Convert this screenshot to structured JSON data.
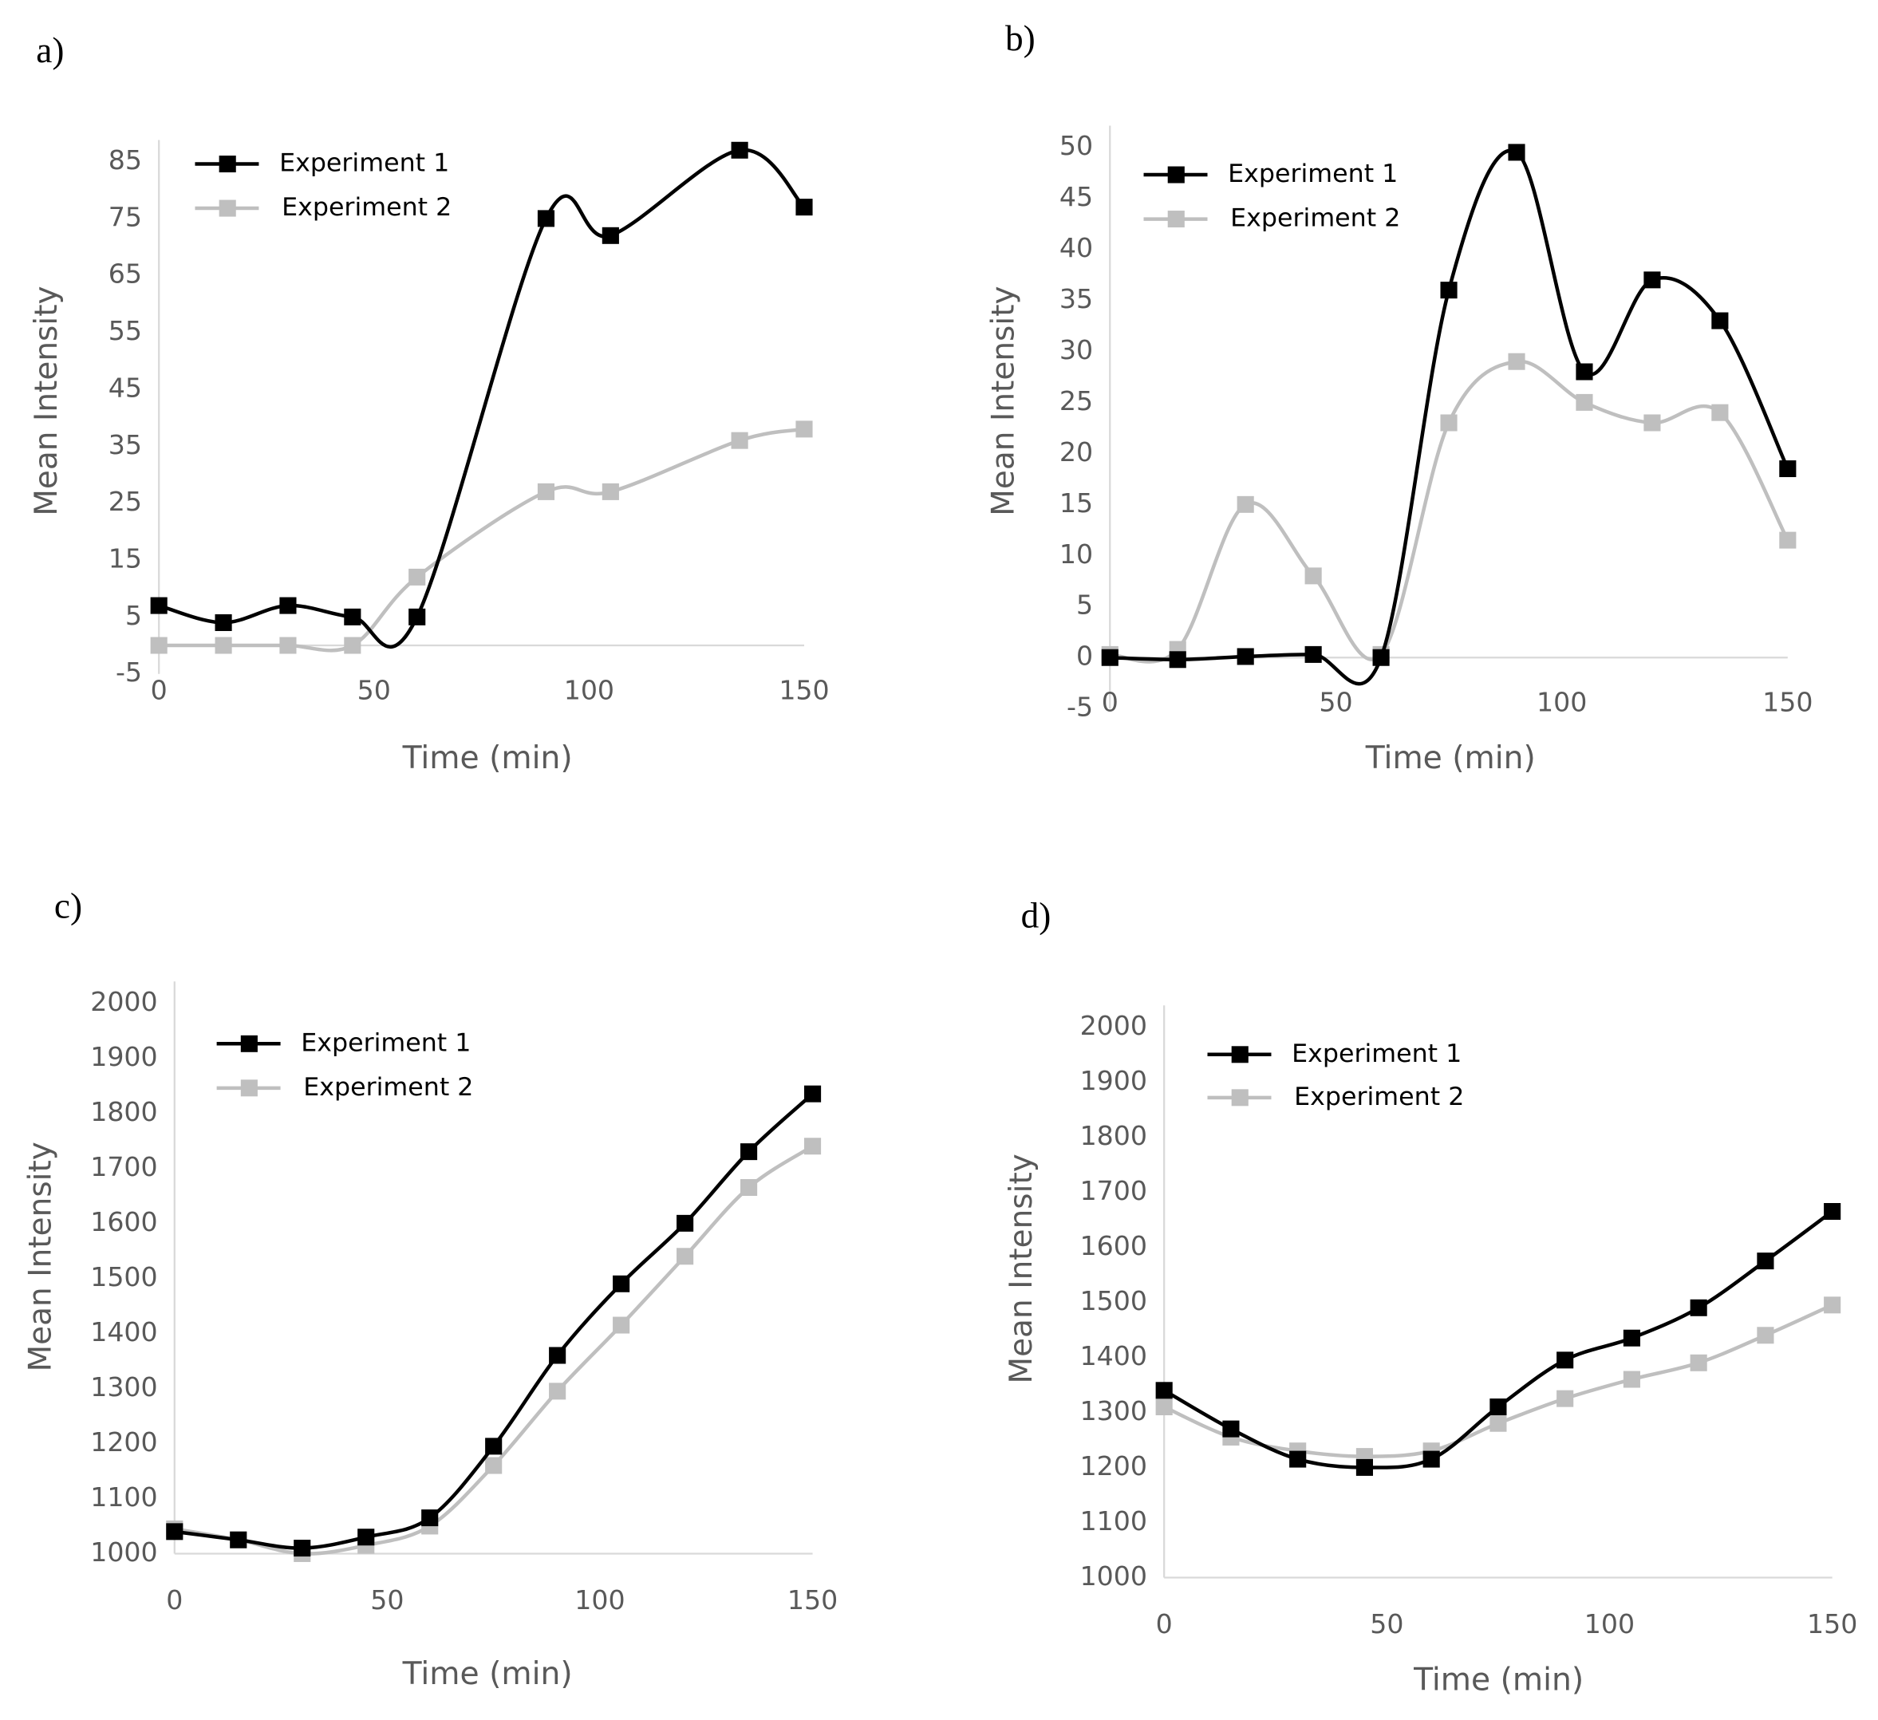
{
  "chart_data": [
    {
      "type": "line",
      "label": "a)",
      "xlabel": "Time (min)",
      "ylabel": "Mean Intensity",
      "x": [
        0,
        15,
        30,
        45,
        60,
        90,
        105,
        135,
        150
      ],
      "series": [
        {
          "name": "Experiment 1",
          "color": "#000000",
          "values": [
            7,
            4,
            7,
            5,
            5,
            75,
            72,
            87,
            77
          ]
        },
        {
          "name": "Experiment 2",
          "color": "#bfbfbf",
          "values": [
            0,
            0,
            0,
            0,
            12,
            27,
            27,
            36,
            38
          ]
        }
      ],
      "xlim": [
        0,
        150
      ],
      "xticks": [
        0,
        50,
        100,
        150
      ],
      "ylim": [
        -5,
        85
      ],
      "yticks": [
        -5,
        5,
        15,
        25,
        35,
        45,
        55,
        65,
        75,
        85
      ],
      "legend": "upper left"
    },
    {
      "type": "line",
      "label": "b)",
      "xlabel": "Time (min)",
      "ylabel": "Mean Intensity",
      "x": [
        0,
        15,
        30,
        45,
        60,
        75,
        90,
        105,
        120,
        135,
        150
      ],
      "series": [
        {
          "name": "Experiment 1",
          "color": "#000000",
          "values": [
            0,
            -0.2,
            0.1,
            0.3,
            0,
            36,
            49.5,
            28,
            37,
            33,
            18.5
          ]
        },
        {
          "name": "Experiment 2",
          "color": "#bfbfbf",
          "values": [
            0.3,
            0.8,
            15,
            8,
            0.3,
            23,
            29,
            25,
            23,
            24,
            11.5
          ]
        }
      ],
      "xlim": [
        0,
        150
      ],
      "xticks": [
        0,
        50,
        100,
        150
      ],
      "ylim": [
        -5,
        50
      ],
      "yticks": [
        -5,
        0,
        5,
        10,
        15,
        20,
        25,
        30,
        35,
        40,
        45,
        50
      ],
      "legend": "upper left"
    },
    {
      "type": "line",
      "label": "c)",
      "xlabel": "Time (min)",
      "ylabel": "Mean Intensity",
      "x": [
        0,
        15,
        30,
        45,
        60,
        75,
        90,
        105,
        120,
        135,
        150
      ],
      "series": [
        {
          "name": "Experiment 1",
          "color": "#000000",
          "values": [
            1040,
            1025,
            1010,
            1030,
            1065,
            1195,
            1360,
            1490,
            1600,
            1730,
            1835
          ]
        },
        {
          "name": "Experiment 2",
          "color": "#bfbfbf",
          "values": [
            1045,
            1025,
            1000,
            1015,
            1050,
            1160,
            1295,
            1415,
            1540,
            1665,
            1740
          ]
        }
      ],
      "xlim": [
        0,
        150
      ],
      "xticks": [
        0,
        50,
        100,
        150
      ],
      "ylim": [
        1000,
        2000
      ],
      "yticks": [
        1000,
        1100,
        1200,
        1300,
        1400,
        1500,
        1600,
        1700,
        1800,
        1900,
        2000
      ],
      "legend": "upper left"
    },
    {
      "type": "line",
      "label": "d)",
      "xlabel": "Time (min)",
      "ylabel": "Mean Intensity",
      "x": [
        0,
        15,
        30,
        45,
        60,
        75,
        90,
        105,
        120,
        135,
        150
      ],
      "series": [
        {
          "name": "Experiment 1",
          "color": "#000000",
          "values": [
            1340,
            1270,
            1215,
            1200,
            1215,
            1310,
            1395,
            1435,
            1490,
            1575,
            1665
          ]
        },
        {
          "name": "Experiment 2",
          "color": "#bfbfbf",
          "values": [
            1310,
            1255,
            1230,
            1220,
            1230,
            1280,
            1325,
            1360,
            1390,
            1440,
            1495
          ]
        }
      ],
      "xlim": [
        0,
        150
      ],
      "xticks": [
        0,
        50,
        100,
        150
      ],
      "ylim": [
        1000,
        2000
      ],
      "yticks": [
        1000,
        1100,
        1200,
        1300,
        1400,
        1500,
        1600,
        1700,
        1800,
        1900,
        2000
      ],
      "legend": "upper left"
    }
  ]
}
